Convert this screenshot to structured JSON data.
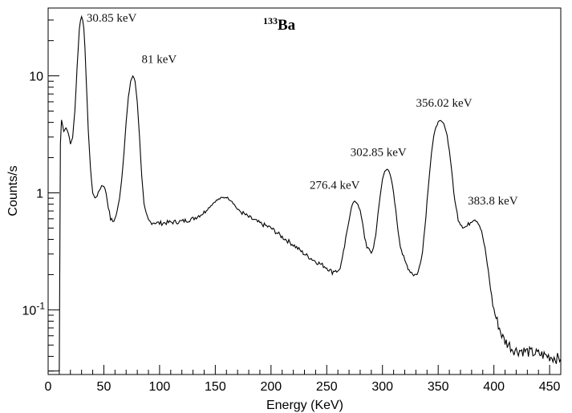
{
  "chart_data": {
    "type": "line",
    "title_sup": "133",
    "title_main": "Ba",
    "xlabel": "Energy (KeV)",
    "ylabel": "Counts/s",
    "xlim": [
      0,
      460
    ],
    "ylim": [
      0.028,
      38
    ],
    "y_scale": "log",
    "grid": false,
    "legend": "none",
    "x_ticks": [
      0,
      50,
      100,
      150,
      200,
      250,
      300,
      350,
      400,
      450
    ],
    "x_tick_labels": [
      "0",
      "50",
      "100",
      "150",
      "200",
      "250",
      "300",
      "350",
      "400",
      "450"
    ],
    "y_ticks": [
      0.1,
      1,
      10
    ],
    "y_tick_labels": [
      {
        "base": "10",
        "exp": "-1"
      },
      {
        "base": "1",
        "exp": ""
      },
      {
        "base": "10",
        "exp": ""
      }
    ],
    "series": [
      {
        "x": [
          0,
          9,
          10,
          11,
          12,
          14,
          16,
          18,
          20,
          22,
          24,
          26,
          28,
          29,
          30,
          31,
          32,
          33,
          34,
          36,
          38,
          40,
          42,
          44,
          46,
          48,
          50,
          52,
          54,
          56,
          58,
          60,
          62,
          64,
          66,
          68,
          70,
          72,
          74,
          76,
          78,
          80,
          82,
          84,
          86,
          88,
          90,
          92,
          95,
          100,
          110,
          120,
          130,
          140,
          150,
          155,
          160,
          165,
          170,
          180,
          190,
          200,
          210,
          220,
          230,
          240,
          250,
          255,
          258,
          260,
          262,
          264,
          266,
          268,
          270,
          272,
          274,
          276,
          278,
          280,
          282,
          284,
          286,
          288,
          290,
          292,
          294,
          296,
          298,
          300,
          302,
          304,
          306,
          308,
          310,
          312,
          314,
          316,
          318,
          320,
          322,
          324,
          326,
          328,
          330,
          332,
          334,
          336,
          338,
          340,
          342,
          344,
          346,
          348,
          350,
          352,
          354,
          356,
          358,
          360,
          362,
          364,
          366,
          368,
          370,
          372,
          374,
          376,
          378,
          380,
          382,
          384,
          386,
          388,
          390,
          392,
          394,
          396,
          398,
          400,
          402,
          404,
          406,
          408,
          410,
          412,
          414,
          416,
          418,
          420,
          425,
          430,
          435,
          440,
          445,
          450,
          455,
          460
        ],
        "y": [
          0.03,
          0.03,
          0.03,
          2.6,
          4.2,
          3.4,
          3.6,
          3.3,
          2.6,
          3.0,
          5.0,
          12.0,
          25.0,
          30.0,
          32.0,
          30.0,
          26.0,
          18.0,
          10.0,
          3.5,
          1.6,
          1.0,
          0.9,
          0.95,
          1.05,
          1.15,
          1.15,
          1.0,
          0.75,
          0.6,
          0.57,
          0.6,
          0.7,
          0.9,
          1.3,
          2.2,
          4.0,
          6.5,
          9.0,
          10.0,
          9.0,
          6.0,
          3.0,
          1.4,
          0.8,
          0.65,
          0.58,
          0.56,
          0.56,
          0.55,
          0.56,
          0.57,
          0.6,
          0.68,
          0.85,
          0.9,
          0.92,
          0.85,
          0.72,
          0.62,
          0.55,
          0.5,
          0.42,
          0.36,
          0.3,
          0.26,
          0.23,
          0.21,
          0.22,
          0.21,
          0.23,
          0.27,
          0.35,
          0.45,
          0.6,
          0.75,
          0.83,
          0.84,
          0.8,
          0.7,
          0.55,
          0.42,
          0.35,
          0.32,
          0.31,
          0.34,
          0.45,
          0.65,
          0.95,
          1.3,
          1.55,
          1.6,
          1.5,
          1.3,
          1.0,
          0.7,
          0.48,
          0.36,
          0.3,
          0.26,
          0.24,
          0.22,
          0.21,
          0.2,
          0.2,
          0.21,
          0.25,
          0.33,
          0.5,
          0.85,
          1.4,
          2.2,
          3.0,
          3.7,
          4.0,
          4.1,
          4.0,
          3.7,
          3.1,
          2.3,
          1.6,
          1.0,
          0.75,
          0.6,
          0.55,
          0.52,
          0.51,
          0.52,
          0.55,
          0.58,
          0.6,
          0.59,
          0.56,
          0.5,
          0.42,
          0.33,
          0.25,
          0.18,
          0.13,
          0.1,
          0.085,
          0.075,
          0.065,
          0.058,
          0.054,
          0.052,
          0.05,
          0.047,
          0.046,
          0.045,
          0.045,
          0.044,
          0.043,
          0.042,
          0.041,
          0.04,
          0.039,
          0.038
        ]
      }
    ],
    "annotations": [
      {
        "text": "30.85 keV",
        "x": 30.85,
        "y": 32
      },
      {
        "text": "81 keV",
        "x": 81,
        "y": 10
      },
      {
        "text": "276.4 keV",
        "x": 276.4,
        "y": 0.84
      },
      {
        "text": "302.85 keV",
        "x": 302.85,
        "y": 1.6
      },
      {
        "text": "356.02 keV",
        "x": 356.02,
        "y": 4.1
      },
      {
        "text": "383.8 keV",
        "x": 383.8,
        "y": 0.6
      }
    ]
  }
}
